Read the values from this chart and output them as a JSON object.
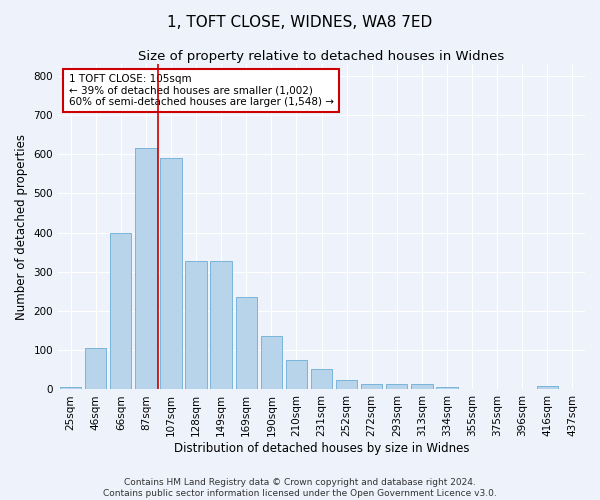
{
  "title": "1, TOFT CLOSE, WIDNES, WA8 7ED",
  "subtitle": "Size of property relative to detached houses in Widnes",
  "xlabel": "Distribution of detached houses by size in Widnes",
  "ylabel": "Number of detached properties",
  "footer_line1": "Contains HM Land Registry data © Crown copyright and database right 2024.",
  "footer_line2": "Contains public sector information licensed under the Open Government Licence v3.0.",
  "categories": [
    "25sqm",
    "46sqm",
    "66sqm",
    "87sqm",
    "107sqm",
    "128sqm",
    "149sqm",
    "169sqm",
    "190sqm",
    "210sqm",
    "231sqm",
    "252sqm",
    "272sqm",
    "293sqm",
    "313sqm",
    "334sqm",
    "355sqm",
    "375sqm",
    "396sqm",
    "416sqm",
    "437sqm"
  ],
  "values": [
    7,
    105,
    400,
    615,
    590,
    328,
    328,
    236,
    136,
    76,
    52,
    25,
    13,
    15,
    15,
    6,
    0,
    0,
    0,
    8,
    0
  ],
  "bar_color": "#b8d4ea",
  "bar_edge_color": "#6aaed6",
  "highlight_line_color": "#cc0000",
  "annotation_text": "1 TOFT CLOSE: 105sqm\n← 39% of detached houses are smaller (1,002)\n60% of semi-detached houses are larger (1,548) →",
  "annotation_box_color": "#ffffff",
  "annotation_box_edge_color": "#cc0000",
  "ylim": [
    0,
    830
  ],
  "yticks": [
    0,
    100,
    200,
    300,
    400,
    500,
    600,
    700,
    800
  ],
  "background_color": "#eef2fb",
  "grid_color": "#ffffff",
  "title_fontsize": 11,
  "subtitle_fontsize": 9.5,
  "axis_label_fontsize": 8.5,
  "tick_fontsize": 7.5,
  "footer_fontsize": 6.5
}
